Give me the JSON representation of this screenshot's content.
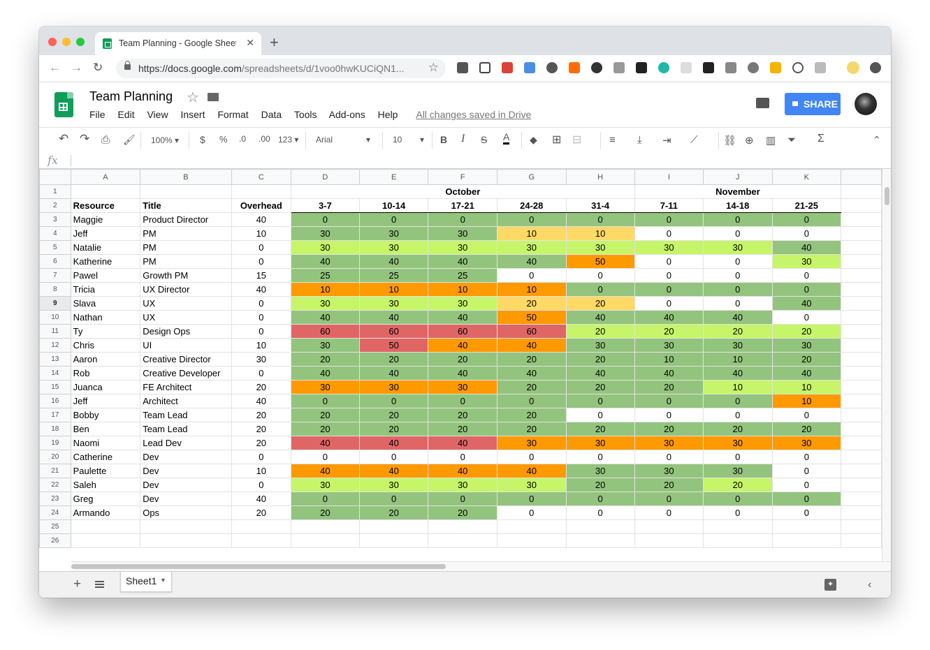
{
  "browser": {
    "tab_title": "Team Planning - Google Sheets",
    "url_host": "https://docs.google.com",
    "url_path": "/spreadsheets/d/1voo0hwKUCiQN1..."
  },
  "app": {
    "title": "Team Planning",
    "menu": [
      "File",
      "Edit",
      "View",
      "Insert",
      "Format",
      "Data",
      "Tools",
      "Add-ons",
      "Help"
    ],
    "saved_status": "All changes saved in Drive",
    "share_label": "SHARE"
  },
  "toolbar": {
    "zoom": "100%",
    "currency": "$",
    "percent": "%",
    "dec_decrease": ".0",
    "dec_increase": ".00",
    "more_formats": "123",
    "font": "Arial",
    "font_size": "10"
  },
  "formula_bar": {
    "fx": "fx"
  },
  "sheet": {
    "columns": [
      "A",
      "B",
      "C",
      "D",
      "E",
      "F",
      "G",
      "H",
      "I",
      "J",
      "K"
    ],
    "month_row": [
      "",
      "",
      "",
      "October",
      "",
      "",
      "",
      "",
      "November",
      "",
      ""
    ],
    "header_row": [
      "Resource",
      "Title",
      "Overhead",
      "3-7",
      "10-14",
      "17-21",
      "24-28",
      "31-4",
      "7-11",
      "14-18",
      "21-25"
    ],
    "rows": [
      [
        "Maggie",
        "Product Director",
        "40",
        "0",
        "0",
        "0",
        "0",
        "0",
        "0",
        "0",
        "0"
      ],
      [
        "Jeff",
        "PM",
        "10",
        "30",
        "30",
        "30",
        "10",
        "10",
        "0",
        "0",
        "0"
      ],
      [
        "Natalie",
        "PM",
        "0",
        "30",
        "30",
        "30",
        "30",
        "30",
        "30",
        "30",
        "40"
      ],
      [
        "Katherine",
        "PM",
        "0",
        "40",
        "40",
        "40",
        "40",
        "50",
        "0",
        "0",
        "30"
      ],
      [
        "Pawel",
        "Growth PM",
        "15",
        "25",
        "25",
        "25",
        "0",
        "0",
        "0",
        "0",
        "0"
      ],
      [
        "Tricia",
        "UX Director",
        "40",
        "10",
        "10",
        "10",
        "10",
        "0",
        "0",
        "0",
        "0"
      ],
      [
        "Slava",
        "UX",
        "0",
        "30",
        "30",
        "30",
        "20",
        "20",
        "0",
        "0",
        "40"
      ],
      [
        "Nathan",
        "UX",
        "0",
        "40",
        "40",
        "40",
        "50",
        "40",
        "40",
        "40",
        "0"
      ],
      [
        "Ty",
        "Design Ops",
        "0",
        "60",
        "60",
        "60",
        "60",
        "20",
        "20",
        "20",
        "20"
      ],
      [
        "Chris",
        "UI",
        "10",
        "30",
        "50",
        "40",
        "40",
        "30",
        "30",
        "30",
        "30"
      ],
      [
        "Aaron",
        "Creative Director",
        "30",
        "20",
        "20",
        "20",
        "20",
        "20",
        "10",
        "10",
        "20"
      ],
      [
        "Rob",
        "Creative Developer",
        "0",
        "40",
        "40",
        "40",
        "40",
        "40",
        "40",
        "40",
        "40"
      ],
      [
        "Juanca",
        "FE Architect",
        "20",
        "30",
        "30",
        "30",
        "20",
        "20",
        "20",
        "10",
        "10"
      ],
      [
        "Jeff",
        "Architect",
        "40",
        "0",
        "0",
        "0",
        "0",
        "0",
        "0",
        "0",
        "10"
      ],
      [
        "Bobby",
        "Team Lead",
        "20",
        "20",
        "20",
        "20",
        "20",
        "0",
        "0",
        "0",
        "0"
      ],
      [
        "Ben",
        "Team Lead",
        "20",
        "20",
        "20",
        "20",
        "20",
        "20",
        "20",
        "20",
        "20"
      ],
      [
        "Naomi",
        "Lead Dev",
        "20",
        "40",
        "40",
        "40",
        "30",
        "30",
        "30",
        "30",
        "30"
      ],
      [
        "Catherine",
        "Dev",
        "0",
        "0",
        "0",
        "0",
        "0",
        "0",
        "0",
        "0",
        "0"
      ],
      [
        "Paulette",
        "Dev",
        "10",
        "40",
        "40",
        "40",
        "40",
        "30",
        "30",
        "30",
        "0"
      ],
      [
        "Saleh",
        "Dev",
        "0",
        "30",
        "30",
        "30",
        "30",
        "20",
        "20",
        "20",
        "0"
      ],
      [
        "Greg",
        "Dev",
        "40",
        "0",
        "0",
        "0",
        "0",
        "0",
        "0",
        "0",
        "0"
      ],
      [
        "Armando",
        "Ops",
        "20",
        "20",
        "20",
        "20",
        "0",
        "0",
        "0",
        "0",
        "0"
      ]
    ],
    "cell_colors": [
      [
        "g",
        "g",
        "g",
        "g",
        "g",
        "g",
        "g",
        "g"
      ],
      [
        "g",
        "g",
        "g",
        "y",
        "y",
        "w",
        "w",
        "w"
      ],
      [
        "l",
        "l",
        "l",
        "l",
        "l",
        "l",
        "l",
        "g"
      ],
      [
        "g",
        "g",
        "g",
        "g",
        "o",
        "w",
        "w",
        "l"
      ],
      [
        "g",
        "g",
        "g",
        "w",
        "w",
        "w",
        "w",
        "w"
      ],
      [
        "o",
        "o",
        "o",
        "o",
        "g",
        "g",
        "g",
        "g"
      ],
      [
        "l",
        "l",
        "l",
        "y",
        "y",
        "w",
        "w",
        "g"
      ],
      [
        "g",
        "g",
        "g",
        "o",
        "g",
        "g",
        "g",
        "w"
      ],
      [
        "r",
        "r",
        "r",
        "r",
        "l",
        "l",
        "l",
        "l"
      ],
      [
        "g",
        "r",
        "o",
        "o",
        "g",
        "g",
        "g",
        "g"
      ],
      [
        "g",
        "g",
        "g",
        "g",
        "g",
        "g",
        "g",
        "g"
      ],
      [
        "g",
        "g",
        "g",
        "g",
        "g",
        "g",
        "g",
        "g"
      ],
      [
        "o",
        "o",
        "o",
        "g",
        "g",
        "g",
        "l",
        "l"
      ],
      [
        "g",
        "g",
        "g",
        "g",
        "g",
        "g",
        "g",
        "o"
      ],
      [
        "g",
        "g",
        "g",
        "g",
        "w",
        "w",
        "w",
        "w"
      ],
      [
        "g",
        "g",
        "g",
        "g",
        "g",
        "g",
        "g",
        "g"
      ],
      [
        "r",
        "r",
        "r",
        "o",
        "o",
        "o",
        "o",
        "o"
      ],
      [
        "w",
        "w",
        "w",
        "w",
        "w",
        "w",
        "w",
        "w"
      ],
      [
        "o",
        "o",
        "o",
        "o",
        "g",
        "g",
        "g",
        "w"
      ],
      [
        "l",
        "l",
        "l",
        "l",
        "g",
        "g",
        "l",
        "w"
      ],
      [
        "g",
        "g",
        "g",
        "g",
        "g",
        "g",
        "g",
        "g"
      ],
      [
        "g",
        "g",
        "g",
        "w",
        "w",
        "w",
        "w",
        "w"
      ]
    ],
    "palette": {
      "g": "#93c47d",
      "l": "#c6f56a",
      "y": "#ffd966",
      "o": "#ff9900",
      "r": "#e06666",
      "w": "#ffffff"
    },
    "selected_row": 9,
    "tab_name": "Sheet1"
  }
}
